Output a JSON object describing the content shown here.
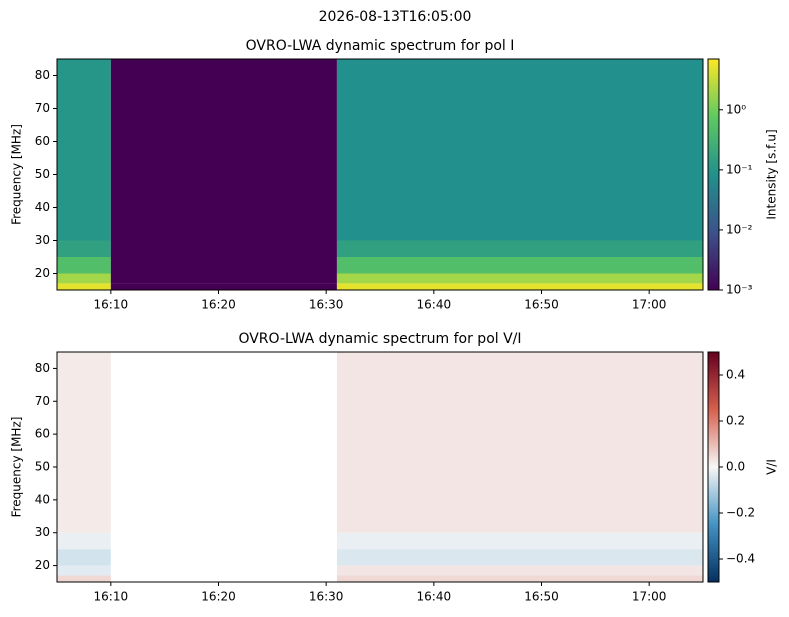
{
  "suptitle": "2026-08-13T16:05:00",
  "chart_data": [
    {
      "type": "heatmap",
      "title": "OVRO-LWA dynamic spectrum for pol I",
      "ylabel": "Frequency [MHz]",
      "colorbar_label": "Intensity [s.f.u]",
      "colormap": "viridis",
      "zscale": "log",
      "x_edges": [
        "16:05",
        "16:10",
        "16:31",
        "17:05"
      ],
      "y_edges": [
        15,
        17,
        20,
        25,
        30,
        85
      ],
      "z": [
        [
          5,
          0.001,
          5
        ],
        [
          2,
          0.001,
          2
        ],
        [
          0.5,
          0.001,
          0.5
        ],
        [
          0.15,
          0.001,
          0.15
        ],
        [
          0.1,
          0.001,
          0.08
        ]
      ],
      "xlim": [
        "16:05",
        "17:05"
      ],
      "xticks": [
        {
          "value": "16:10",
          "label": "16:10"
        },
        {
          "value": "16:20",
          "label": "16:20"
        },
        {
          "value": "16:30",
          "label": "16:30"
        },
        {
          "value": "16:40",
          "label": "16:40"
        },
        {
          "value": "16:50",
          "label": "16:50"
        },
        {
          "value": "17:00",
          "label": "17:00"
        }
      ],
      "ylim": [
        15,
        85
      ],
      "yticks": [
        20,
        30,
        40,
        50,
        60,
        70,
        80
      ],
      "zlim": [
        0.001,
        7
      ],
      "zticks": [
        {
          "value": 0.001,
          "label": "10⁻³"
        },
        {
          "value": 0.01,
          "label": "10⁻²"
        },
        {
          "value": 0.1,
          "label": "10⁻¹"
        },
        {
          "value": 1,
          "label": "10⁰"
        }
      ]
    },
    {
      "type": "heatmap",
      "title": "OVRO-LWA dynamic spectrum for pol V/I",
      "ylabel": "Frequency [MHz]",
      "colorbar_label": "V/I",
      "colormap": "RdBu_r",
      "zscale": "linear",
      "x_edges": [
        "16:05",
        "16:10",
        "16:31",
        "17:05"
      ],
      "y_edges": [
        15,
        17,
        20,
        25,
        30,
        85
      ],
      "z": [
        [
          0.05,
          null,
          0.05
        ],
        [
          -0.03,
          null,
          0.03
        ],
        [
          -0.05,
          null,
          -0.04
        ],
        [
          -0.02,
          null,
          -0.02
        ],
        [
          0.02,
          null,
          0.03
        ]
      ],
      "xlim": [
        "16:05",
        "17:05"
      ],
      "xticks": [
        {
          "value": "16:10",
          "label": "16:10"
        },
        {
          "value": "16:20",
          "label": "16:20"
        },
        {
          "value": "16:30",
          "label": "16:30"
        },
        {
          "value": "16:40",
          "label": "16:40"
        },
        {
          "value": "16:50",
          "label": "16:50"
        },
        {
          "value": "17:00",
          "label": "17:00"
        }
      ],
      "ylim": [
        15,
        85
      ],
      "yticks": [
        20,
        30,
        40,
        50,
        60,
        70,
        80
      ],
      "zlim": [
        -0.5,
        0.5
      ],
      "zticks": [
        {
          "value": -0.4,
          "label": "−0.4"
        },
        {
          "value": -0.2,
          "label": "−0.2"
        },
        {
          "value": 0,
          "label": "0.0"
        },
        0.2,
        0.4
      ]
    }
  ]
}
